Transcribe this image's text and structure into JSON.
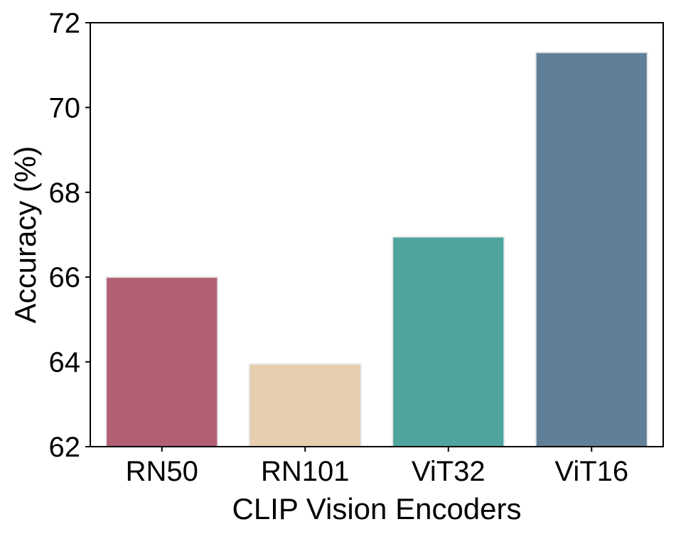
{
  "chart_data": {
    "type": "bar",
    "title": "",
    "xlabel": "CLIP Vision Encoders",
    "ylabel": "Accuracy (%)",
    "categories": [
      "RN50",
      "RN101",
      "ViT32",
      "ViT16"
    ],
    "values": [
      66.0,
      63.95,
      66.95,
      71.3
    ],
    "colors": [
      "#b35f73",
      "#e6ceae",
      "#4fa59d",
      "#5f8098"
    ],
    "ylim": [
      62,
      72
    ],
    "yticks": [
      62,
      64,
      66,
      68,
      70,
      72
    ],
    "grid": false,
    "legend": "none"
  }
}
